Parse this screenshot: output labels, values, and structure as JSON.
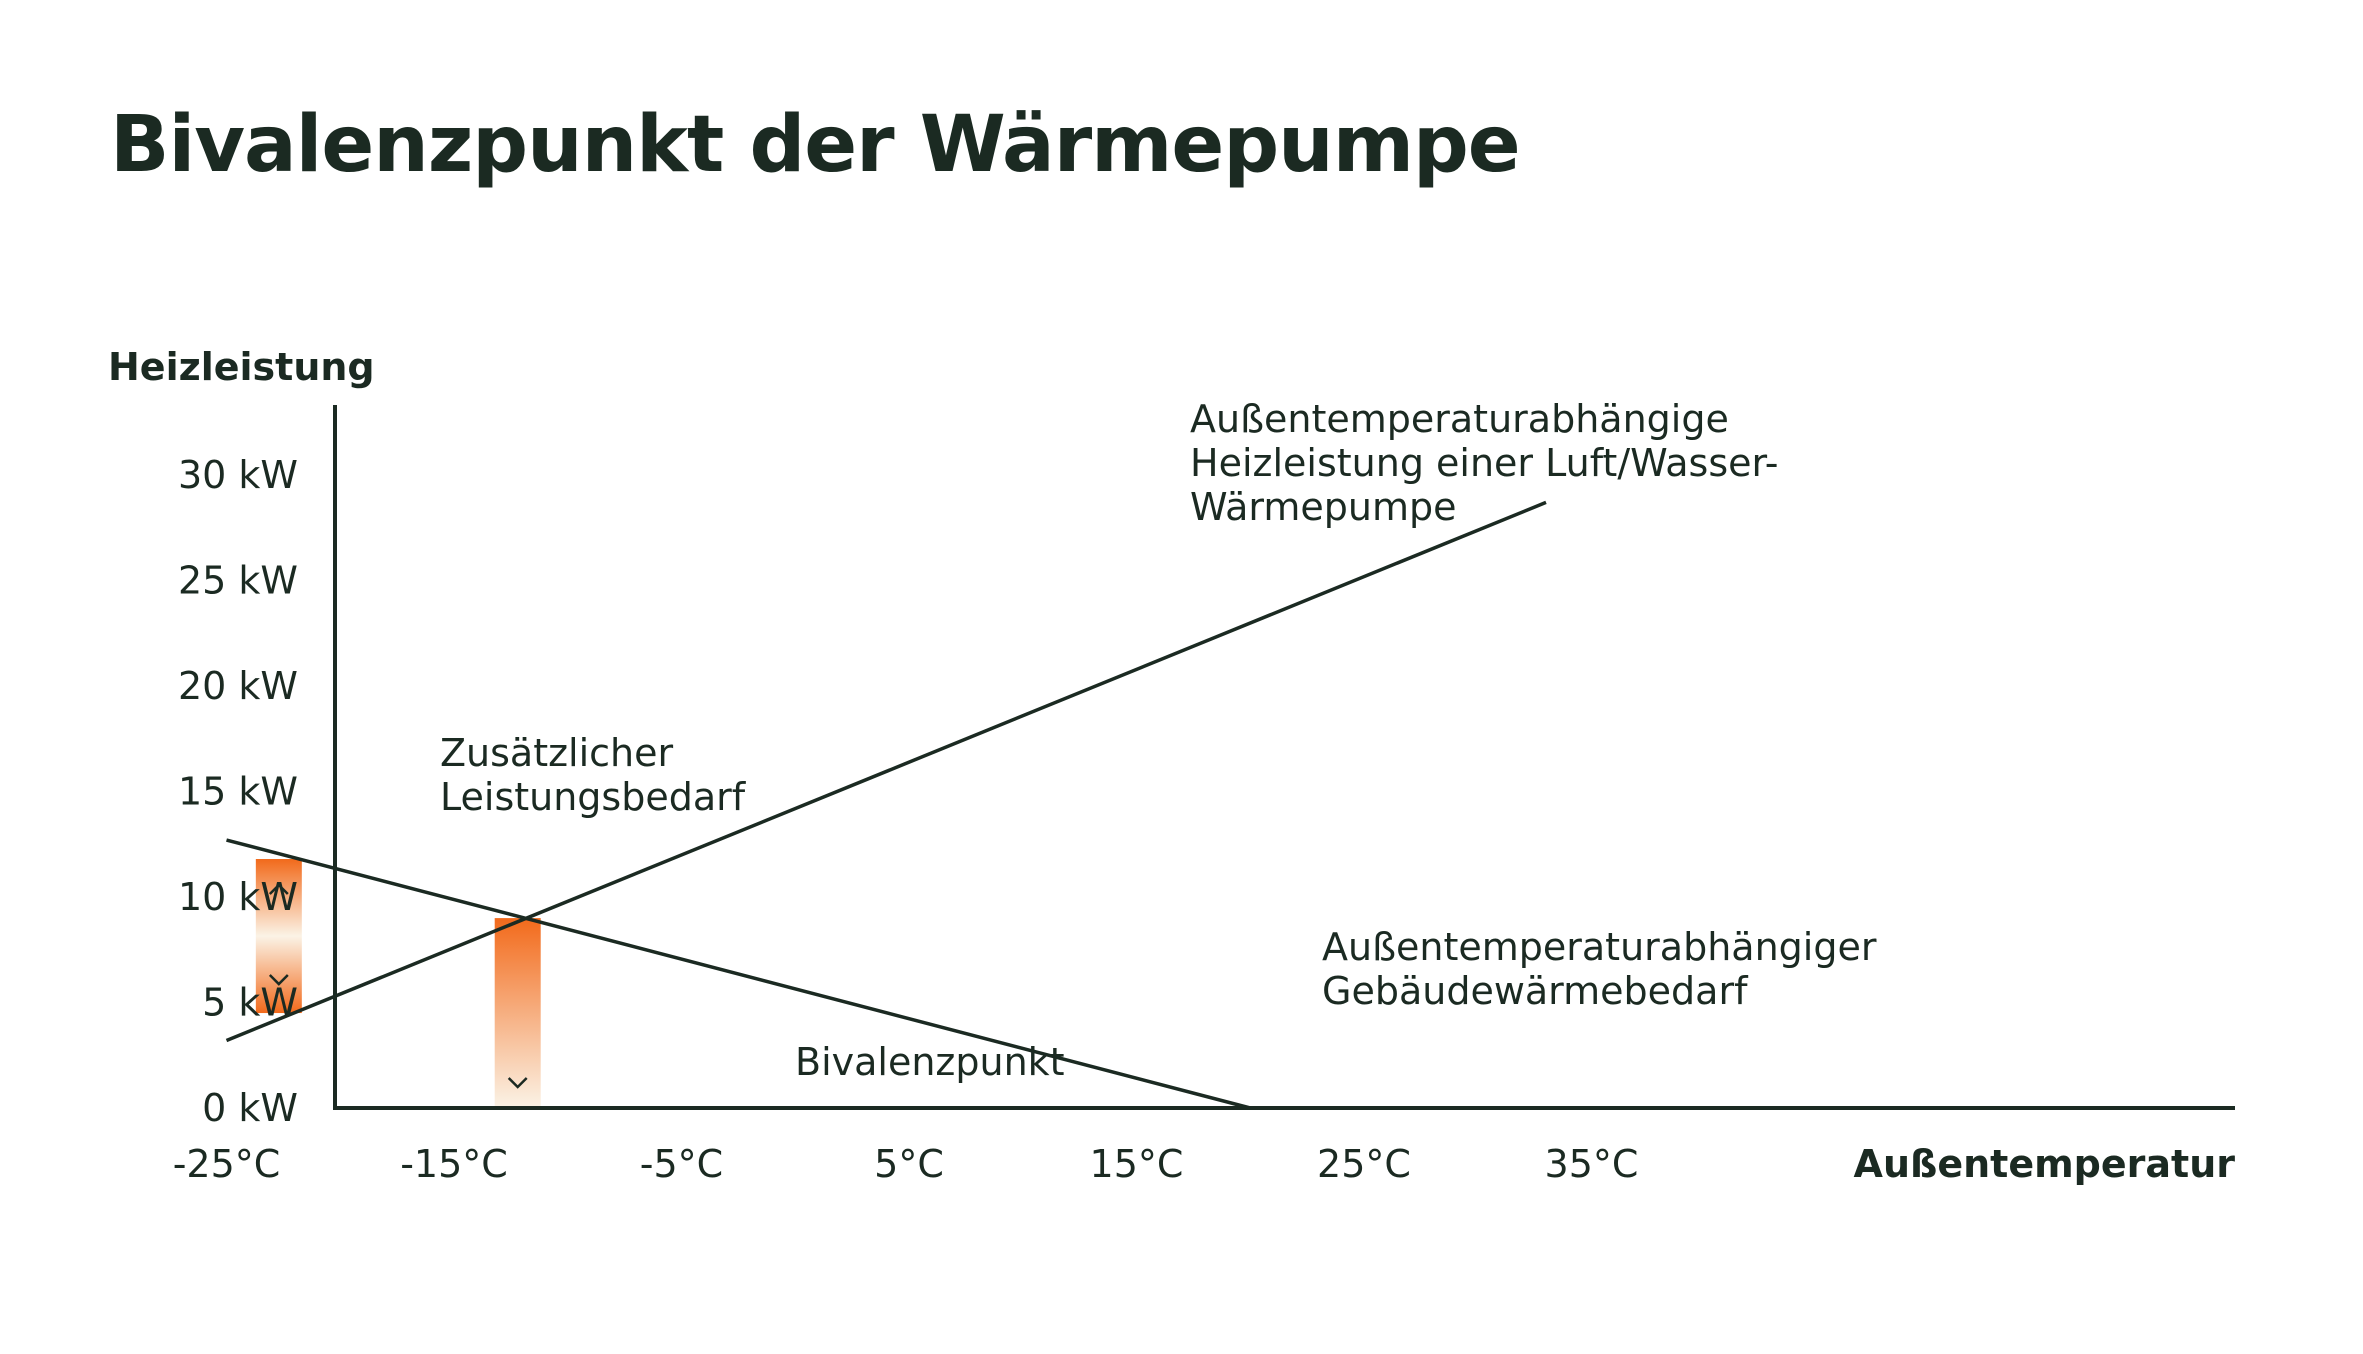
{
  "chart_data": {
    "type": "line",
    "title": "Bivalenzpunkt der Wärmepumpe",
    "ylabel": "Heizleistung",
    "xlabel": "Außentemperatur",
    "y_ticks": [
      "0 kW",
      "5 kW",
      "10 kW",
      "15 kW",
      "20 kW",
      "25 kW",
      "30 kW"
    ],
    "y_tick_values": [
      0,
      5,
      10,
      15,
      20,
      25,
      30
    ],
    "x_ticks": [
      "-25°C",
      "-15°C",
      "-5°C",
      "5°C",
      "15°C",
      "25°C",
      "35°C"
    ],
    "x_tick_values": [
      -25,
      -15,
      -5,
      5,
      15,
      25,
      35
    ],
    "xlim": [
      -30,
      45
    ],
    "ylim": [
      0,
      33
    ],
    "series": [
      {
        "x": [
          -25,
          33
        ],
        "y": [
          3.2,
          28.7
        ]
      },
      {
        "x": [
          -25,
          20
        ],
        "y": [
          12.7,
          0
        ]
      }
    ],
    "bivalence_point": {
      "x": -12.2,
      "y": 9.0
    },
    "highlights": [
      {
        "x": -22.7,
        "y_from": 4.5,
        "y_to": 11.8
      },
      {
        "x": -12.2,
        "y_from": 0,
        "y_to": 9.0
      }
    ],
    "annotations": {
      "heat_pump_output": [
        "Außentemperaturabhängige",
        "Heizleistung einer Luft/Wasser-",
        "Wärmepumpe"
      ],
      "building_demand": [
        "Außentemperaturabhängiger",
        "Gebäudewärmebedarf"
      ],
      "additional_demand": [
        "Zusätzlicher",
        "Leistungsbedarf"
      ],
      "bivalence_label": "Bivalenzpunkt"
    },
    "colors": {
      "line": "#1b2a22",
      "accent": "#f26a1b",
      "accent_light": "#fbf3e6"
    }
  }
}
